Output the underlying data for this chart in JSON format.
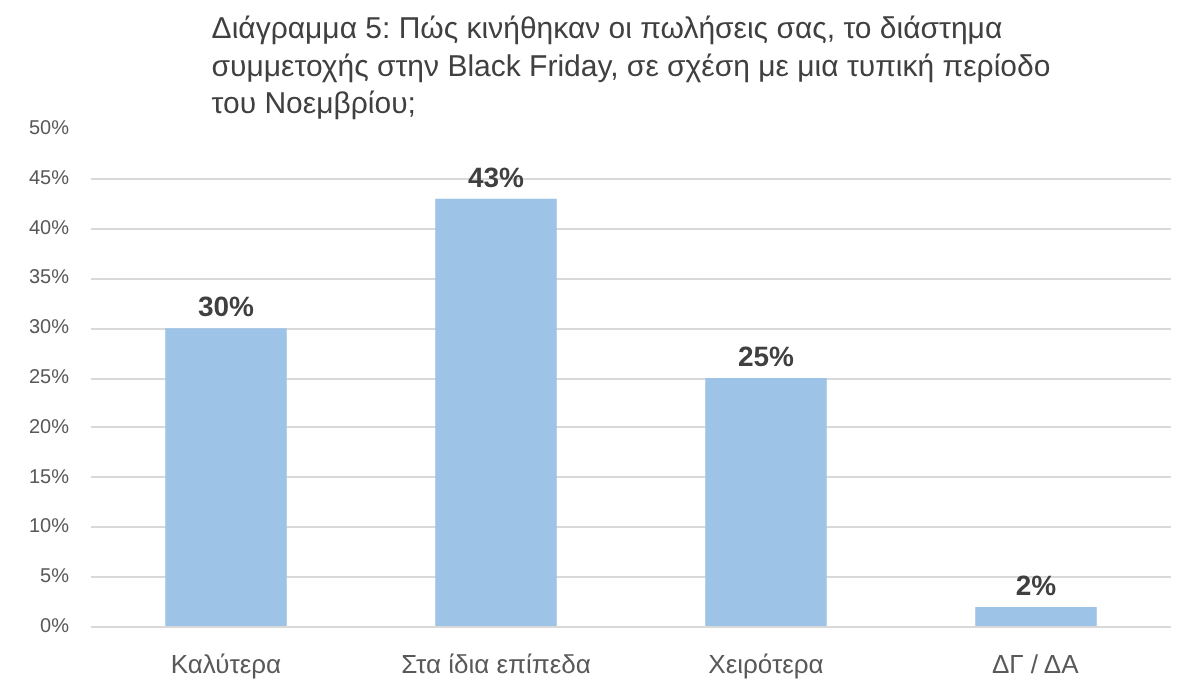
{
  "chart_data": {
    "type": "bar",
    "title": "Διάγραμμα 5: Πώς κινήθηκαν οι πωλήσεις σας, το διάστημα\nσυμμετοχής στην Black Friday, σε σχέση με μια τυπική περίοδο\nτου Νοεμβρίου;",
    "categories": [
      "Καλύτερα",
      "Στα ίδια επίπεδα",
      "Χειρότερα",
      "ΔΓ / ΔΑ"
    ],
    "values": [
      30,
      43,
      25,
      2
    ],
    "color": "#9dc3e6",
    "ylim": [
      0,
      50
    ],
    "yticks": [
      {
        "value": 0,
        "label": "0%"
      },
      {
        "value": 5,
        "label": "5%"
      },
      {
        "value": 10,
        "label": "10%"
      },
      {
        "value": 15,
        "label": "15%"
      },
      {
        "value": 20,
        "label": "20%"
      },
      {
        "value": 25,
        "label": "25%"
      },
      {
        "value": 30,
        "label": "30%"
      },
      {
        "value": 35,
        "label": "35%"
      },
      {
        "value": 40,
        "label": "40%"
      },
      {
        "value": 45,
        "label": "45%"
      },
      {
        "value": 50,
        "label": "50%"
      }
    ],
    "value_labels": [
      "30%",
      "43%",
      "25%",
      "2%"
    ],
    "grid": "y"
  }
}
